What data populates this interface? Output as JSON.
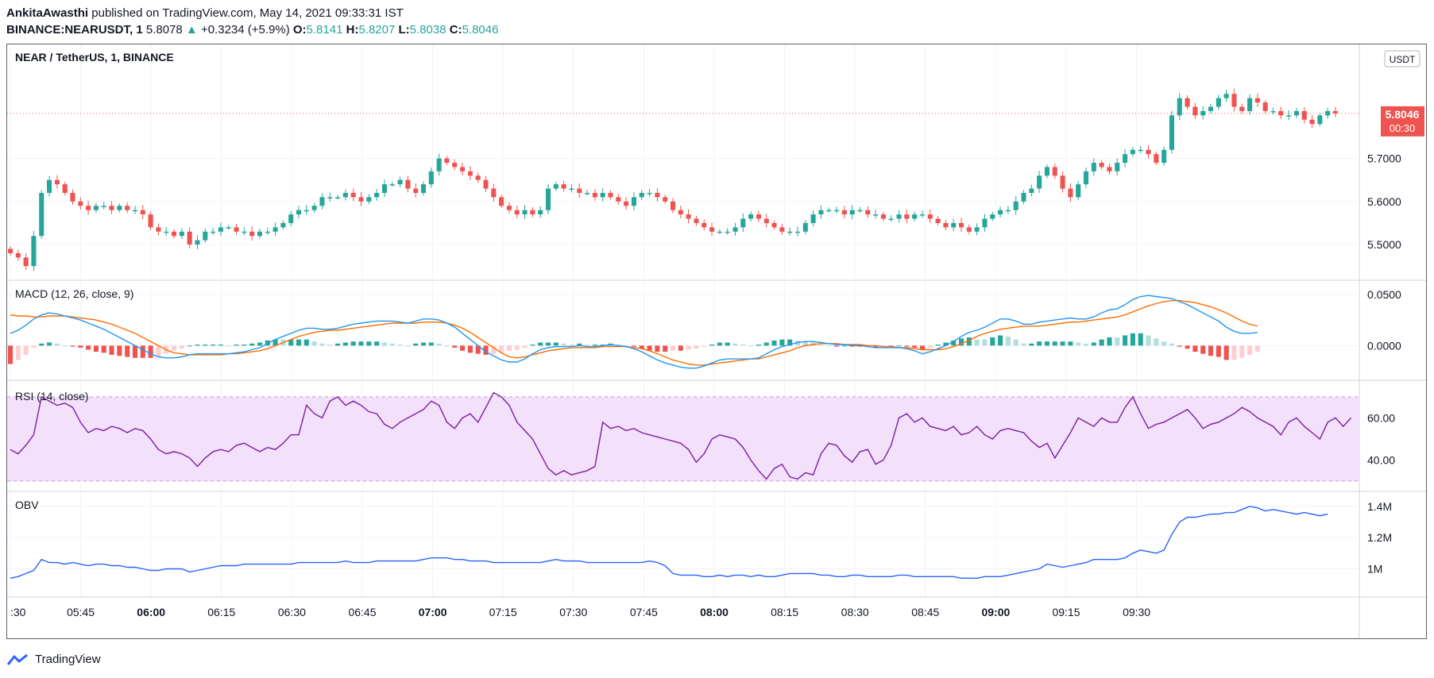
{
  "header": {
    "author": "AnkitaAwasthi",
    "published_text": "published on TradingView.com, May 14, 2021 09:33:31 IST",
    "symbol": "BINANCE:NEARUSDT, 1",
    "last": "5.8078",
    "change": "+0.3234 (+5.9%)",
    "o_label": "O:",
    "o": "5.8141",
    "h_label": "H:",
    "h": "5.8207",
    "l_label": "L:",
    "l": "5.8038",
    "c_label": "C:",
    "c": "5.8046"
  },
  "chart_title": "NEAR / TetherUS, 1, BINANCE",
  "currency_badge": "USDT",
  "price_tag": {
    "price": "5.8046",
    "countdown": "00:30"
  },
  "panes": {
    "macd": {
      "label": "MACD (12, 26, close, 9)",
      "ticks": [
        "0.0500",
        "0.0000"
      ]
    },
    "rsi": {
      "label": "RSI (14, close)",
      "ticks": [
        "60.00",
        "40.00"
      ]
    },
    "obv": {
      "label": "OBV",
      "ticks": [
        "1.4M",
        "1.2M",
        "1M"
      ]
    }
  },
  "footer": {
    "brand": "TradingView"
  },
  "colors": {
    "up": "#26a69a",
    "down": "#ef5350",
    "macd": "#2196f3",
    "signal": "#ff6d00",
    "hist_up_strong": "#26a69a",
    "hist_up_weak": "#b2dfdb",
    "hist_down_strong": "#ef5350",
    "hist_down_weak": "#ffcdd2",
    "rsi": "#7b1fa2",
    "rsi_band": "#f3e0fa",
    "obv": "#2962ff"
  },
  "chart_data": [
    {
      "type": "candlestick",
      "title": "NEAR / TetherUS, 1, BINANCE",
      "x_tick_labels": [
        ":30",
        "05:45",
        "06:00",
        "06:15",
        "06:30",
        "06:45",
        "07:00",
        "07:15",
        "07:30",
        "07:45",
        "08:00",
        "08:15",
        "08:30",
        "08:45",
        "09:00",
        "09:15",
        "09:30"
      ],
      "x_tick_bold": [
        "06:00",
        "07:00",
        "08:00",
        "09:00"
      ],
      "y_ticks": [
        "5.5000",
        "5.6000",
        "5.7000"
      ],
      "ylim": [
        5.43,
        5.95
      ],
      "last_price": 5.8046,
      "close_series": [
        5.48,
        5.47,
        5.45,
        5.52,
        5.62,
        5.65,
        5.64,
        5.62,
        5.6,
        5.59,
        5.58,
        5.59,
        5.59,
        5.58,
        5.59,
        5.58,
        5.58,
        5.57,
        5.54,
        5.53,
        5.53,
        5.52,
        5.53,
        5.5,
        5.51,
        5.53,
        5.53,
        5.54,
        5.54,
        5.53,
        5.53,
        5.52,
        5.53,
        5.53,
        5.54,
        5.55,
        5.57,
        5.58,
        5.58,
        5.59,
        5.61,
        5.61,
        5.61,
        5.62,
        5.61,
        5.6,
        5.61,
        5.62,
        5.64,
        5.64,
        5.65,
        5.63,
        5.62,
        5.64,
        5.67,
        5.7,
        5.69,
        5.68,
        5.67,
        5.66,
        5.65,
        5.63,
        5.61,
        5.59,
        5.58,
        5.57,
        5.58,
        5.57,
        5.58,
        5.63,
        5.64,
        5.63,
        5.63,
        5.62,
        5.62,
        5.61,
        5.62,
        5.61,
        5.6,
        5.59,
        5.61,
        5.62,
        5.62,
        5.61,
        5.6,
        5.58,
        5.57,
        5.56,
        5.55,
        5.54,
        5.53,
        5.53,
        5.53,
        5.54,
        5.56,
        5.57,
        5.56,
        5.55,
        5.54,
        5.53,
        5.53,
        5.53,
        5.55,
        5.57,
        5.58,
        5.58,
        5.58,
        5.57,
        5.58,
        5.58,
        5.57,
        5.57,
        5.56,
        5.56,
        5.57,
        5.56,
        5.57,
        5.57,
        5.56,
        5.55,
        5.54,
        5.55,
        5.54,
        5.53,
        5.54,
        5.56,
        5.57,
        5.58,
        5.58,
        5.6,
        5.62,
        5.63,
        5.66,
        5.68,
        5.66,
        5.63,
        5.61,
        5.64,
        5.67,
        5.69,
        5.68,
        5.67,
        5.69,
        5.71,
        5.72,
        5.72,
        5.71,
        5.69,
        5.72,
        5.8,
        5.84,
        5.82,
        5.8,
        5.81,
        5.82,
        5.84,
        5.85,
        5.82,
        5.81,
        5.84,
        5.83,
        5.81,
        5.81,
        5.8,
        5.8,
        5.81,
        5.79,
        5.78,
        5.8,
        5.81,
        5.8046
      ]
    },
    {
      "type": "line",
      "title": "MACD (12, 26, close, 9)",
      "y_ticks": [
        "0.0500",
        "0.0000"
      ],
      "ylim": [
        -0.03,
        0.06
      ],
      "series": [
        {
          "name": "",
          "values": [
            0.012,
            0.015,
            0.02,
            0.026,
            0.03,
            0.032,
            0.031,
            0.029,
            0.027,
            0.025,
            0.022,
            0.019,
            0.016,
            0.012,
            0.008,
            0.004,
            0.0,
            -0.004,
            -0.008,
            -0.011,
            -0.012,
            -0.012,
            -0.011,
            -0.009,
            -0.008,
            -0.008,
            -0.008,
            -0.008,
            -0.008,
            -0.007,
            -0.006,
            -0.004,
            -0.002,
            0.002,
            0.006,
            0.009,
            0.012,
            0.015,
            0.017,
            0.017,
            0.016,
            0.016,
            0.017,
            0.019,
            0.021,
            0.022,
            0.023,
            0.024,
            0.024,
            0.024,
            0.023,
            0.022,
            0.024,
            0.026,
            0.026,
            0.025,
            0.022,
            0.018,
            0.012,
            0.006,
            0.0,
            -0.006,
            -0.01,
            -0.014,
            -0.016,
            -0.016,
            -0.013,
            -0.008,
            -0.004,
            -0.002,
            -0.001,
            -0.001,
            -0.001,
            0.0,
            -0.001,
            -0.001,
            0.0,
            0.001,
            0.0,
            -0.001,
            -0.003,
            -0.006,
            -0.01,
            -0.014,
            -0.017,
            -0.019,
            -0.021,
            -0.022,
            -0.022,
            -0.02,
            -0.017,
            -0.014,
            -0.013,
            -0.013,
            -0.013,
            -0.013,
            -0.012,
            -0.008,
            -0.004,
            -0.001,
            0.001,
            0.003,
            0.004,
            0.004,
            0.003,
            0.002,
            0.001,
            0.001,
            0.0,
            0.0,
            -0.001,
            -0.002,
            -0.002,
            -0.002,
            -0.002,
            -0.003,
            -0.005,
            -0.008,
            -0.006,
            -0.003,
            0.0,
            0.004,
            0.009,
            0.013,
            0.015,
            0.018,
            0.022,
            0.026,
            0.026,
            0.024,
            0.021,
            0.021,
            0.023,
            0.024,
            0.025,
            0.026,
            0.027,
            0.026,
            0.026,
            0.028,
            0.032,
            0.035,
            0.036,
            0.04,
            0.045,
            0.048,
            0.049,
            0.048,
            0.047,
            0.046,
            0.043,
            0.04,
            0.036,
            0.032,
            0.028,
            0.024,
            0.018,
            0.014,
            0.012,
            0.012,
            0.013
          ]
        },
        {
          "name": "",
          "values": [
            0.03,
            0.029,
            0.029,
            0.028,
            0.028,
            0.029,
            0.029,
            0.029,
            0.028,
            0.027,
            0.026,
            0.025,
            0.023,
            0.021,
            0.018,
            0.015,
            0.012,
            0.008,
            0.004,
            0.0,
            -0.004,
            -0.007,
            -0.008,
            -0.009,
            -0.009,
            -0.009,
            -0.009,
            -0.009,
            -0.008,
            -0.008,
            -0.007,
            -0.006,
            -0.005,
            -0.003,
            0.0,
            0.003,
            0.006,
            0.009,
            0.011,
            0.013,
            0.014,
            0.015,
            0.015,
            0.016,
            0.017,
            0.018,
            0.019,
            0.02,
            0.021,
            0.022,
            0.022,
            0.022,
            0.022,
            0.023,
            0.023,
            0.023,
            0.022,
            0.02,
            0.017,
            0.013,
            0.008,
            0.003,
            -0.002,
            -0.007,
            -0.011,
            -0.012,
            -0.011,
            -0.009,
            -0.007,
            -0.005,
            -0.004,
            -0.003,
            -0.002,
            -0.002,
            -0.002,
            -0.002,
            -0.001,
            -0.001,
            -0.001,
            -0.001,
            -0.002,
            -0.003,
            -0.005,
            -0.008,
            -0.011,
            -0.014,
            -0.016,
            -0.018,
            -0.019,
            -0.019,
            -0.018,
            -0.017,
            -0.016,
            -0.015,
            -0.014,
            -0.013,
            -0.013,
            -0.011,
            -0.009,
            -0.007,
            -0.005,
            -0.002,
            0.0,
            0.001,
            0.002,
            0.002,
            0.002,
            0.001,
            0.001,
            0.001,
            0.0,
            0.0,
            -0.001,
            -0.001,
            -0.002,
            -0.002,
            -0.003,
            -0.004,
            -0.004,
            -0.004,
            -0.003,
            -0.001,
            0.002,
            0.005,
            0.009,
            0.012,
            0.014,
            0.016,
            0.017,
            0.018,
            0.019,
            0.019,
            0.019,
            0.02,
            0.021,
            0.022,
            0.023,
            0.023,
            0.024,
            0.025,
            0.026,
            0.027,
            0.028,
            0.03,
            0.033,
            0.036,
            0.039,
            0.041,
            0.043,
            0.044,
            0.044,
            0.043,
            0.042,
            0.04,
            0.038,
            0.035,
            0.032,
            0.028,
            0.024,
            0.021,
            0.019
          ]
        }
      ]
    },
    {
      "type": "line",
      "title": "RSI (14, close)",
      "y_ticks": [
        "60.00",
        "40.00"
      ],
      "ylim": [
        27,
        76
      ],
      "band": [
        30,
        70
      ],
      "series": [
        {
          "name": "",
          "values": [
            45,
            43,
            47,
            52,
            70,
            68,
            66,
            67,
            65,
            58,
            53,
            55,
            54,
            56,
            55,
            53,
            55,
            54,
            50,
            45,
            43,
            44,
            43,
            41,
            37,
            41,
            44,
            45,
            44,
            47,
            48,
            46,
            44,
            46,
            45,
            48,
            52,
            52,
            66,
            62,
            60,
            68,
            70,
            66,
            68,
            66,
            63,
            62,
            57,
            55,
            58,
            60,
            62,
            64,
            68,
            66,
            58,
            55,
            60,
            62,
            58,
            65,
            72,
            70,
            66,
            58,
            54,
            50,
            43,
            36,
            33,
            35,
            33,
            34,
            35,
            37,
            58,
            55,
            56,
            54,
            55,
            53,
            52,
            51,
            50,
            49,
            48,
            45,
            39,
            43,
            50,
            52,
            51,
            50,
            46,
            40,
            35,
            31,
            36,
            38,
            32,
            31,
            34,
            33,
            43,
            48,
            47,
            42,
            39,
            44,
            45,
            38,
            40,
            47,
            60,
            62,
            58,
            60,
            56,
            55,
            54,
            56,
            52,
            53,
            56,
            52,
            50,
            54,
            55,
            54,
            53,
            49,
            46,
            48,
            41,
            47,
            53,
            60,
            58,
            56,
            60,
            58,
            58,
            65,
            70,
            62,
            55,
            57,
            58,
            60,
            62,
            64,
            60,
            55,
            57,
            58,
            60,
            62,
            65,
            63,
            60,
            58,
            56,
            52,
            58,
            60,
            56,
            53,
            50,
            58,
            60,
            56,
            60
          ]
        }
      ]
    },
    {
      "type": "line",
      "title": "OBV",
      "y_ticks": [
        "1.4M",
        "1.2M",
        "1M"
      ],
      "ylim": [
        0.85,
        1.47
      ],
      "series": [
        {
          "name": "",
          "values": [
            0.94,
            0.95,
            0.97,
            0.99,
            1.06,
            1.04,
            1.04,
            1.03,
            1.04,
            1.03,
            1.02,
            1.03,
            1.03,
            1.02,
            1.02,
            1.01,
            1.01,
            1.0,
            0.99,
            0.99,
            1.0,
            1.0,
            1.0,
            0.98,
            0.99,
            1.0,
            1.01,
            1.02,
            1.02,
            1.02,
            1.03,
            1.03,
            1.03,
            1.03,
            1.03,
            1.03,
            1.03,
            1.04,
            1.04,
            1.04,
            1.04,
            1.04,
            1.04,
            1.05,
            1.04,
            1.04,
            1.04,
            1.05,
            1.05,
            1.05,
            1.05,
            1.05,
            1.05,
            1.06,
            1.07,
            1.07,
            1.07,
            1.06,
            1.06,
            1.05,
            1.05,
            1.05,
            1.04,
            1.04,
            1.04,
            1.04,
            1.04,
            1.04,
            1.04,
            1.05,
            1.06,
            1.05,
            1.05,
            1.05,
            1.04,
            1.04,
            1.04,
            1.04,
            1.04,
            1.04,
            1.04,
            1.04,
            1.05,
            1.04,
            1.02,
            0.97,
            0.96,
            0.96,
            0.96,
            0.95,
            0.95,
            0.96,
            0.95,
            0.96,
            0.96,
            0.95,
            0.96,
            0.95,
            0.95,
            0.96,
            0.97,
            0.97,
            0.97,
            0.97,
            0.96,
            0.96,
            0.95,
            0.95,
            0.96,
            0.96,
            0.95,
            0.95,
            0.95,
            0.95,
            0.96,
            0.96,
            0.95,
            0.95,
            0.95,
            0.95,
            0.95,
            0.95,
            0.94,
            0.94,
            0.94,
            0.95,
            0.95,
            0.95,
            0.96,
            0.97,
            0.98,
            0.99,
            1.0,
            1.03,
            1.02,
            1.01,
            1.02,
            1.03,
            1.04,
            1.06,
            1.06,
            1.06,
            1.06,
            1.07,
            1.1,
            1.12,
            1.11,
            1.1,
            1.12,
            1.22,
            1.3,
            1.33,
            1.33,
            1.34,
            1.35,
            1.35,
            1.36,
            1.36,
            1.38,
            1.4,
            1.39,
            1.37,
            1.38,
            1.37,
            1.36,
            1.35,
            1.36,
            1.35,
            1.34,
            1.35
          ]
        }
      ]
    }
  ]
}
